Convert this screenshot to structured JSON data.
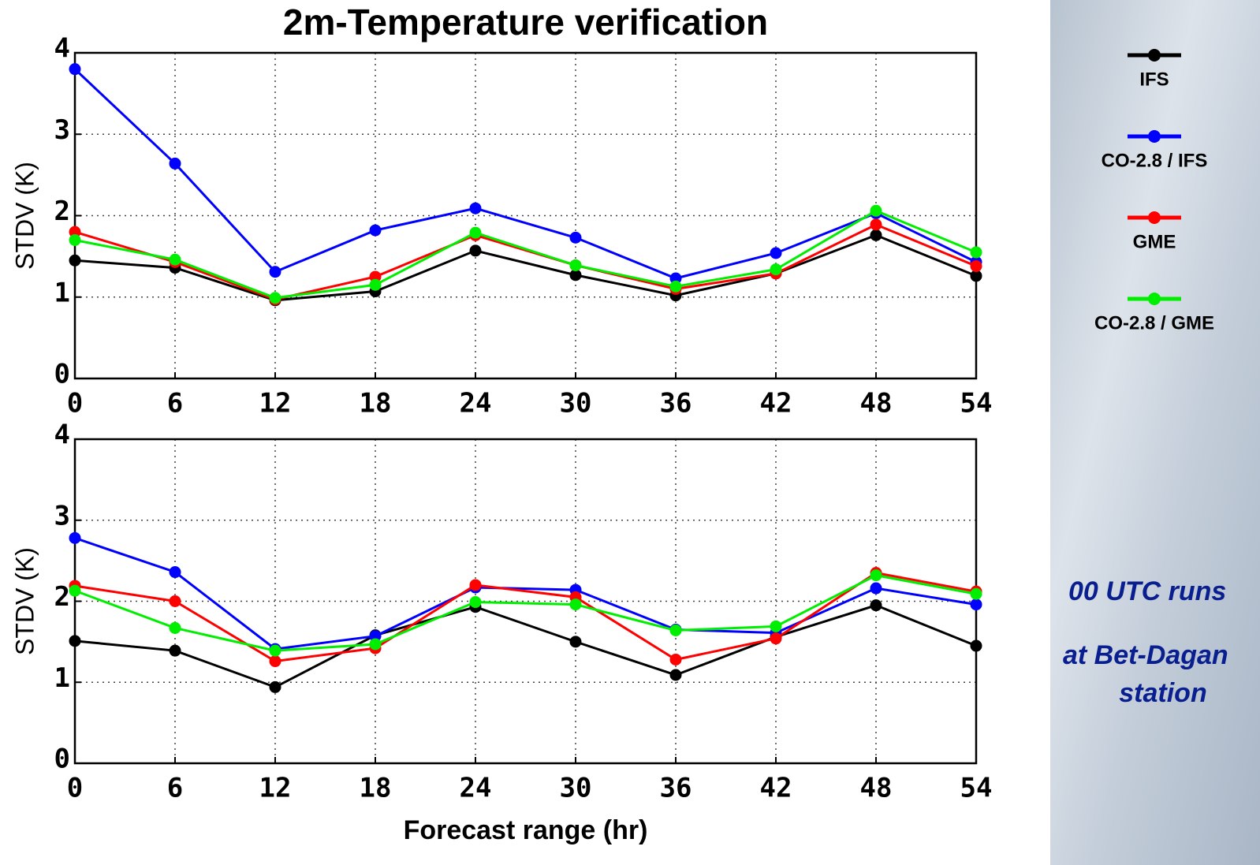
{
  "chart_data": [
    {
      "type": "line",
      "title": "2m-Temperature verification",
      "ylabel": "STDV (K)",
      "x": [
        0,
        6,
        12,
        18,
        24,
        30,
        36,
        42,
        48,
        54
      ],
      "xlim": [
        0,
        54
      ],
      "xticks": [
        0,
        6,
        12,
        18,
        24,
        30,
        36,
        42,
        48,
        54
      ],
      "ylim": [
        0,
        4
      ],
      "yticks": [
        0,
        1,
        2,
        3,
        4
      ],
      "grid": true,
      "series": [
        {
          "name": "IFS",
          "color": "#000000",
          "values": [
            1.45,
            1.36,
            0.96,
            1.07,
            1.57,
            1.27,
            1.02,
            1.29,
            1.76,
            1.26
          ]
        },
        {
          "name": "CO-2.8 / IFS",
          "color": "#0000ff",
          "values": [
            3.8,
            2.64,
            1.31,
            1.82,
            2.09,
            1.73,
            1.23,
            1.54,
            2.03,
            1.43
          ]
        },
        {
          "name": "GME",
          "color": "#ff0000",
          "values": [
            1.8,
            1.43,
            0.97,
            1.25,
            1.76,
            1.39,
            1.1,
            1.29,
            1.89,
            1.38
          ]
        },
        {
          "name": "CO-2.8 / GME",
          "color": "#00ee00",
          "values": [
            1.7,
            1.46,
            0.99,
            1.15,
            1.79,
            1.39,
            1.13,
            1.34,
            2.06,
            1.55
          ]
        }
      ]
    },
    {
      "type": "line",
      "ylabel": "STDV (K)",
      "xlabel": "Forecast range (hr)",
      "x": [
        0,
        6,
        12,
        18,
        24,
        30,
        36,
        42,
        48,
        54
      ],
      "xlim": [
        0,
        54
      ],
      "xticks": [
        0,
        6,
        12,
        18,
        24,
        30,
        36,
        42,
        48,
        54
      ],
      "ylim": [
        0,
        4
      ],
      "yticks": [
        0,
        1,
        2,
        3,
        4
      ],
      "grid": true,
      "series": [
        {
          "color": "#000000",
          "values": [
            1.51,
            1.39,
            0.94,
            1.58,
            1.93,
            1.5,
            1.09,
            1.56,
            1.95,
            1.45
          ]
        },
        {
          "color": "#0000ff",
          "values": [
            2.78,
            2.36,
            1.41,
            1.57,
            2.17,
            2.14,
            1.65,
            1.61,
            2.16,
            1.96
          ]
        },
        {
          "color": "#ff0000",
          "values": [
            2.19,
            2.0,
            1.26,
            1.42,
            2.2,
            2.05,
            1.28,
            1.54,
            2.35,
            2.12
          ]
        },
        {
          "color": "#00ee00",
          "values": [
            2.13,
            1.67,
            1.39,
            1.47,
            1.99,
            1.96,
            1.64,
            1.69,
            2.32,
            2.09
          ]
        }
      ],
      "annotations": [
        "00 UTC runs",
        "at Bet-Dagan",
        "station"
      ]
    }
  ]
}
